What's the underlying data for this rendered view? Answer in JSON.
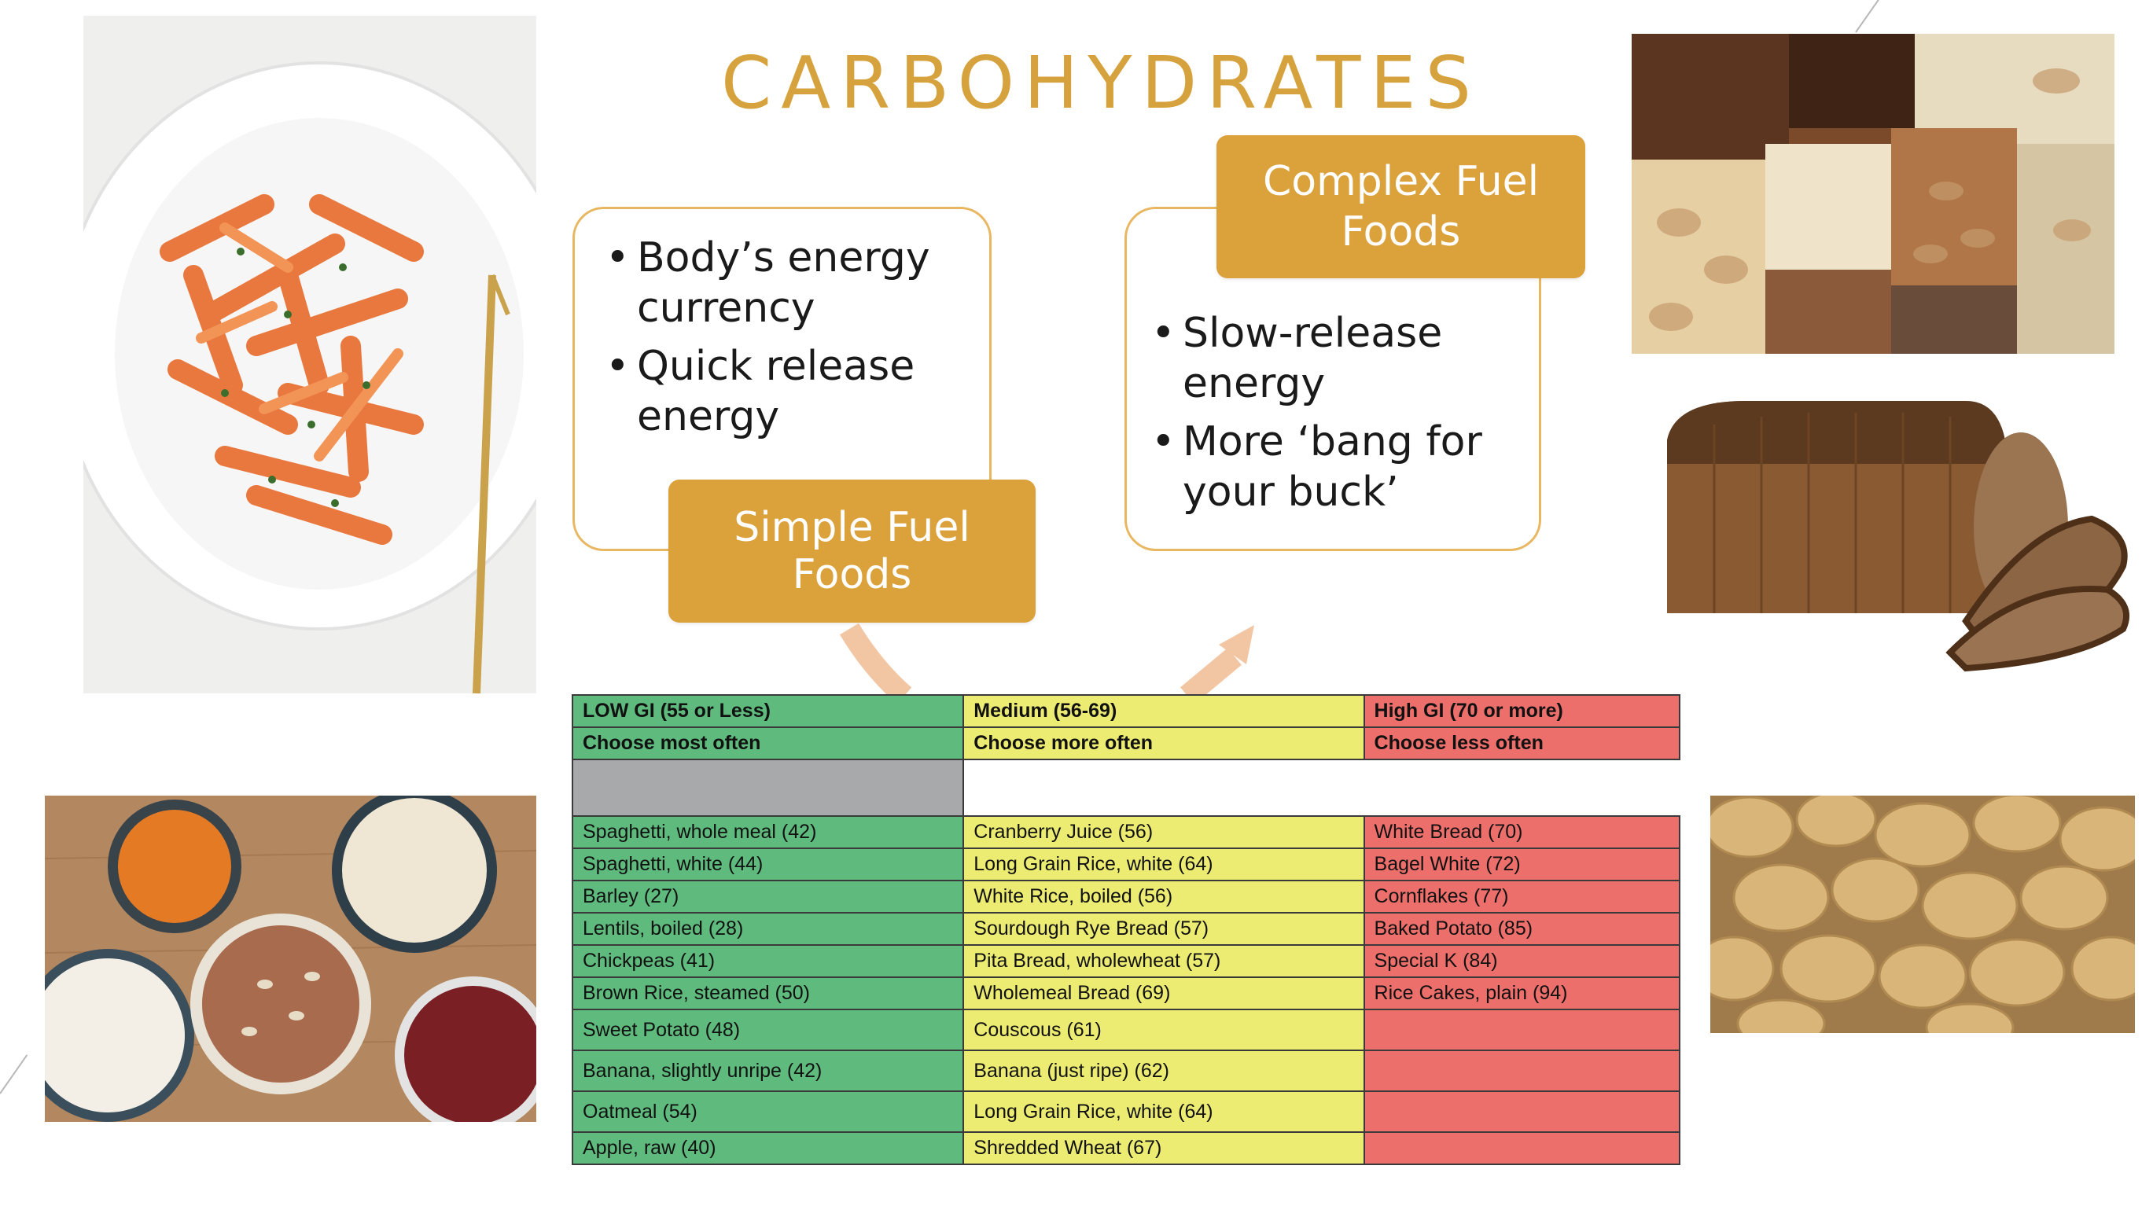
{
  "slide": {
    "title": "CARBOHYDRATES"
  },
  "simple_fuel": {
    "label": "Simple Fuel Foods",
    "bullets": [
      "Body’s energy currency",
      "Quick release energy"
    ]
  },
  "complex_fuel": {
    "label_line1": "Complex Fuel",
    "label_line2": "Foods",
    "bullets": [
      "Slow-release energy",
      "More ‘bang for your buck’"
    ]
  },
  "images": {
    "pasta": "pasta-bowl-image",
    "nuts": "mixed-nuts-image",
    "bread": "bread-loaf-image",
    "beans": "beans-lentils-image",
    "potatoes": "potatoes-image"
  },
  "gi_table": {
    "headers": {
      "low": "LOW GI (55 or Less)",
      "medium": "Medium (56-69)",
      "high": "High GI (70 or more)"
    },
    "advice": {
      "low": "Choose most often",
      "medium": "Choose more often",
      "high": "Choose less often"
    },
    "rows": [
      [
        "Spaghetti, whole meal (42)",
        "Cranberry Juice (56)",
        "White Bread (70)"
      ],
      [
        "Spaghetti, white (44)",
        "Long Grain Rice, white (64)",
        "Bagel White (72)"
      ],
      [
        "Barley (27)",
        "White Rice, boiled (56)",
        "Cornflakes (77)"
      ],
      [
        "Lentils, boiled (28)",
        "Sourdough Rye Bread (57)",
        "Baked Potato (85)"
      ],
      [
        "Chickpeas (41)",
        "Pita Bread, wholewheat (57)",
        "Special K (84)"
      ],
      [
        "Brown Rice, steamed (50)",
        "Wholemeal Bread (69)",
        "Rice Cakes, plain (94)"
      ],
      [
        "Sweet Potato (48)",
        "Couscous (61)",
        ""
      ],
      [
        "Banana, slightly unripe (42)",
        "Banana (just ripe) (62)",
        ""
      ],
      [
        "Oatmeal (54)",
        "Long Grain Rice, white (64)",
        ""
      ],
      [
        "Apple, raw (40)",
        "Shredded Wheat (67)",
        ""
      ]
    ]
  },
  "colors": {
    "accent": "#dba13b",
    "low_gi": "#5fba7d",
    "medium_gi": "#ecec73",
    "high_gi": "#ec6f6b"
  }
}
